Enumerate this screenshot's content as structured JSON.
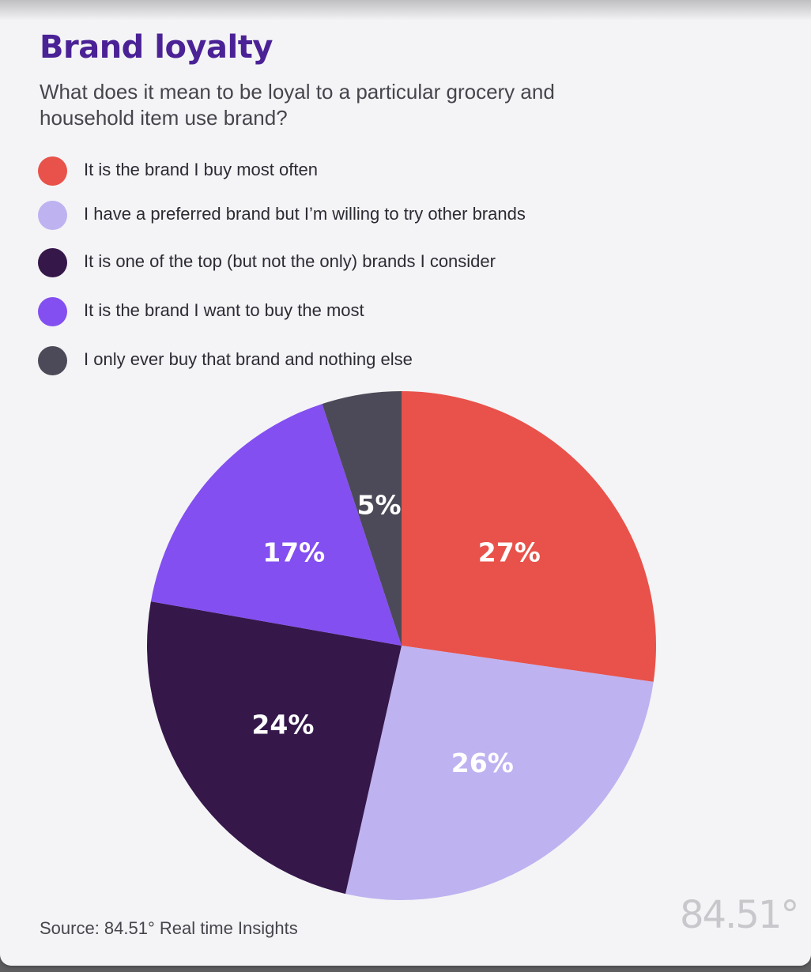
{
  "header": {
    "title": "Brand loyalty",
    "subtitle": "What does it mean to be loyal to a particular grocery and household item use brand?"
  },
  "chart_data": {
    "type": "pie",
    "title": "Brand loyalty",
    "subtitle": "What does it mean to be loyal to a particular grocery and household item use brand?",
    "categories": [
      "It is the brand I buy most often",
      "I have a preferred brand but I’m willing to try other brands",
      "It is one of the top (but not the only) brands I consider",
      "It is the brand I want to buy the most",
      "I only ever buy that brand and nothing else"
    ],
    "values": [
      27,
      26,
      24,
      17,
      5
    ],
    "labels": [
      "27%",
      "26%",
      "24%",
      "17%",
      "5%"
    ],
    "colors": [
      "#e8524a",
      "#bfb2f0",
      "#35174a",
      "#834ff0",
      "#4c4a58"
    ],
    "start": "12 o'clock",
    "direction": "clockwise",
    "legend": "top-left",
    "unit": "%"
  },
  "footer": {
    "source": "Source: 84.51° Real time Insights",
    "logo": "84.51°"
  }
}
